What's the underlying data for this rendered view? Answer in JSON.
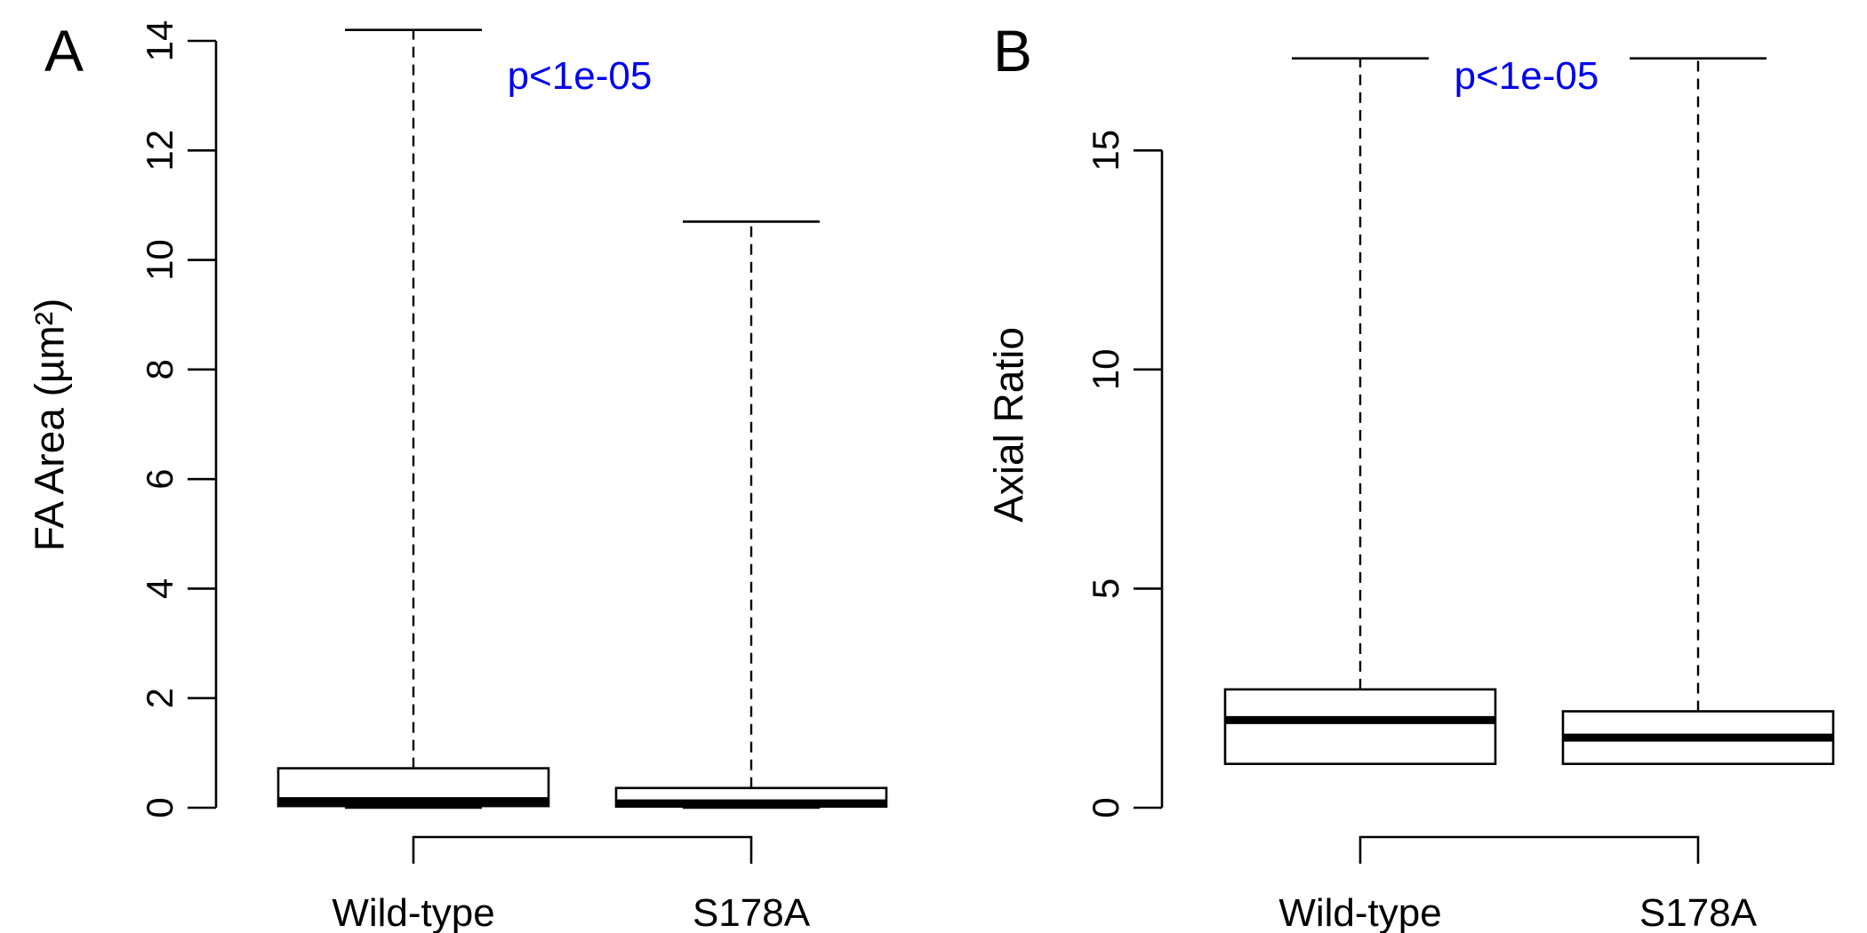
{
  "colors": {
    "axis": "#000000",
    "pvalue": "#0000ee",
    "box_fill": "#ffffff"
  },
  "chart_data": [
    {
      "type": "box",
      "panel_label": "A",
      "title": "",
      "xlabel": "",
      "ylabel": "FA Area (µm²)",
      "ylim": [
        0,
        14
      ],
      "yticks": [
        0,
        2,
        4,
        6,
        8,
        10,
        12,
        14
      ],
      "categories": [
        "Wild-type",
        "S178A"
      ],
      "boxes": [
        {
          "name": "Wild-type",
          "whisker_low": 0.0,
          "q1": 0.03,
          "median": 0.12,
          "q3": 0.72,
          "whisker_high": 14.2
        },
        {
          "name": "S178A",
          "whisker_low": 0.0,
          "q1": 0.02,
          "median": 0.08,
          "q3": 0.36,
          "whisker_high": 10.7
        }
      ],
      "annotation": "p<1e-05"
    },
    {
      "type": "box",
      "panel_label": "B",
      "title": "",
      "xlabel": "",
      "ylabel": "Axial Ratio",
      "ylim": [
        0,
        17.5
      ],
      "yticks": [
        0,
        5,
        10,
        15
      ],
      "categories": [
        "Wild-type",
        "S178A"
      ],
      "boxes": [
        {
          "name": "Wild-type",
          "whisker_low": 1.0,
          "q1": 1.0,
          "median": 2.0,
          "q3": 2.7,
          "whisker_high": 17.1
        },
        {
          "name": "S178A",
          "whisker_low": 1.0,
          "q1": 1.0,
          "median": 1.6,
          "q3": 2.2,
          "whisker_high": 17.1
        }
      ],
      "annotation": "p<1e-05"
    }
  ]
}
